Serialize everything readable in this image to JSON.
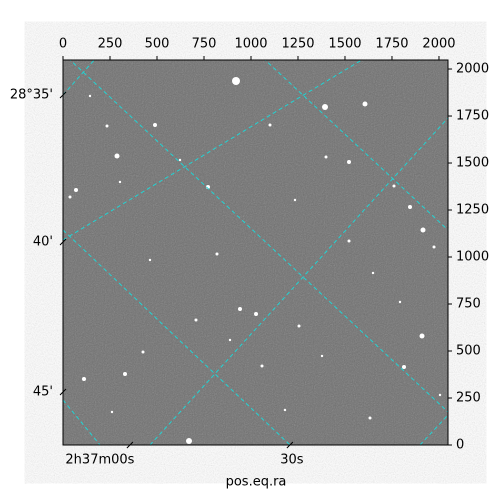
{
  "chart_data": {
    "type": "image",
    "xlabel": "pos.eq.ra",
    "xlim": [
      0,
      2048
    ],
    "ylim": [
      0,
      2048
    ],
    "xticks": [
      0,
      250,
      500,
      750,
      1000,
      1250,
      1500,
      1750,
      2000
    ],
    "yticks": [
      0,
      250,
      500,
      750,
      1000,
      1250,
      1500,
      1750,
      2000
    ],
    "ra_ticks": [
      {
        "value": 356,
        "label": "2h37m00s"
      },
      {
        "value": 1207,
        "label": "30s"
      }
    ],
    "dec_ticks": [
      {
        "value": 1862,
        "label": "28°35'"
      },
      {
        "value": 1080,
        "label": "40'"
      },
      {
        "value": 282,
        "label": "45'"
      }
    ],
    "grid_color": "#22d3d3"
  }
}
